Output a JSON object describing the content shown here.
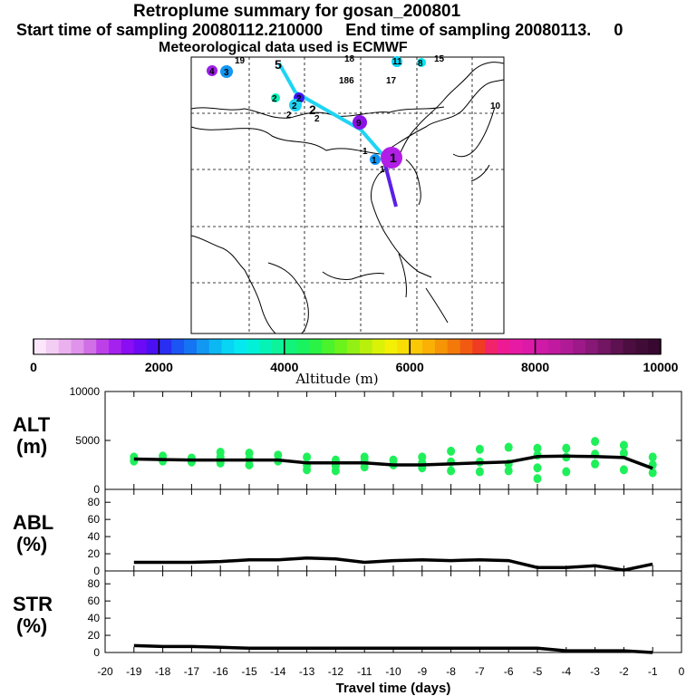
{
  "header": {
    "title": "Retroplume summary for gosan_200801",
    "start_label": "Start time of sampling 20080112.210000",
    "end_label": "End time of sampling 20080113.",
    "end_value": "0",
    "met_label": "Meteorological data used is ECMWF"
  },
  "colorbar": {
    "label": "Altitude (m)",
    "ticks": [
      "0",
      "2000",
      "4000",
      "6000",
      "8000",
      "10000"
    ],
    "colors": [
      "#fbe6fb",
      "#f3cdf3",
      "#eab1ee",
      "#df93ea",
      "#d06fe6",
      "#bd3fe8",
      "#a522ee",
      "#8a0df3",
      "#6d0af5",
      "#4a10f2",
      "#2a2ef3",
      "#1b55f3",
      "#1574f3",
      "#1297f3",
      "#0cb8f3",
      "#08d4f3",
      "#05e8f0",
      "#03f0d8",
      "#06f3b7",
      "#0cf39a",
      "#12f37b",
      "#19f35f",
      "#2af345",
      "#4af32c",
      "#6df31c",
      "#93f014",
      "#b8f00c",
      "#daf207",
      "#f3f005",
      "#f8de05",
      "#fbc805",
      "#fbb005",
      "#f69505",
      "#f37a0a",
      "#f25a12",
      "#f03c22",
      "#f2236b",
      "#ee1a93",
      "#e71aa5",
      "#dc1aa8",
      "#cf1aa7",
      "#c11aa1",
      "#b01a96",
      "#9d1888",
      "#881877",
      "#721563",
      "#5e1150",
      "#4c0e40",
      "#410b37",
      "#380830"
    ]
  },
  "map": {
    "plume_labels": [
      "19",
      "5",
      "18",
      "11",
      "8",
      "15",
      "4",
      "3",
      "2",
      "2",
      "2",
      "2",
      "2",
      "2",
      "186",
      "17",
      "10",
      "9",
      "1",
      "1",
      "1",
      "1"
    ]
  },
  "chart_data": [
    {
      "name": "ALT",
      "type": "line",
      "ylabel": [
        "ALT",
        "(m)"
      ],
      "ylim": [
        0,
        10000
      ],
      "yticks": [
        "0",
        "5000",
        "10000"
      ],
      "xlim": [
        -20,
        0
      ],
      "x": [
        -19,
        -18,
        -17,
        -16,
        -15,
        -14,
        -13,
        -12,
        -11,
        -10,
        -9,
        -8,
        -7,
        -6,
        -5,
        -4,
        -3,
        -2,
        -1
      ],
      "values": [
        3100,
        3050,
        3000,
        3000,
        3000,
        3000,
        2700,
        2700,
        2700,
        2500,
        2500,
        2600,
        2700,
        2800,
        3350,
        3400,
        3350,
        3250,
        2150
      ],
      "scatter": [
        [
          -19,
          3300
        ],
        [
          -19,
          2900
        ],
        [
          -18,
          3400
        ],
        [
          -18,
          2900
        ],
        [
          -17,
          3200
        ],
        [
          -17,
          2800
        ],
        [
          -16,
          3800
        ],
        [
          -16,
          3300
        ],
        [
          -16,
          2700
        ],
        [
          -15,
          3700
        ],
        [
          -15,
          3100
        ],
        [
          -15,
          2500
        ],
        [
          -14,
          3500
        ],
        [
          -14,
          2900
        ],
        [
          -13,
          3300
        ],
        [
          -13,
          2500
        ],
        [
          -13,
          2000
        ],
        [
          -12,
          3000
        ],
        [
          -12,
          2400
        ],
        [
          -12,
          1900
        ],
        [
          -11,
          3300
        ],
        [
          -11,
          2900
        ],
        [
          -11,
          2300
        ],
        [
          -10,
          3000
        ],
        [
          -10,
          2500
        ],
        [
          -9,
          3300
        ],
        [
          -9,
          2700
        ],
        [
          -9,
          2200
        ],
        [
          -8,
          3900
        ],
        [
          -8,
          2800
        ],
        [
          -8,
          1900
        ],
        [
          -7,
          4100
        ],
        [
          -7,
          2800
        ],
        [
          -7,
          1800
        ],
        [
          -6,
          4300
        ],
        [
          -6,
          2600
        ],
        [
          -6,
          1900
        ],
        [
          -5,
          4200
        ],
        [
          -5,
          3500
        ],
        [
          -5,
          2200
        ],
        [
          -5,
          1100
        ],
        [
          -4,
          4200
        ],
        [
          -4,
          3300
        ],
        [
          -4,
          1800
        ],
        [
          -3,
          4900
        ],
        [
          -3,
          3600
        ],
        [
          -3,
          2600
        ],
        [
          -2,
          4500
        ],
        [
          -2,
          3700
        ],
        [
          -2,
          2000
        ],
        [
          -1,
          3300
        ],
        [
          -1,
          2500
        ],
        [
          -1,
          1700
        ]
      ]
    },
    {
      "name": "ABL",
      "type": "line",
      "ylabel": [
        "ABL",
        "(%)"
      ],
      "ylim": [
        0,
        95
      ],
      "yticks": [
        "0",
        "20",
        "40",
        "60",
        "80"
      ],
      "xlim": [
        -20,
        0
      ],
      "x": [
        -19,
        -18,
        -17,
        -16,
        -15,
        -14,
        -13,
        -12,
        -11,
        -10,
        -9,
        -8,
        -7,
        -6,
        -5,
        -4,
        -3,
        -2,
        -1
      ],
      "values": [
        10,
        10,
        10,
        11,
        13,
        13,
        15,
        14,
        10,
        12,
        13,
        12,
        13,
        12,
        4,
        4,
        6,
        1,
        8
      ]
    },
    {
      "name": "STR",
      "type": "line",
      "ylabel": [
        "STR",
        "(%)"
      ],
      "ylim": [
        0,
        95
      ],
      "yticks": [
        "0",
        "20",
        "40",
        "60",
        "80"
      ],
      "xlim": [
        -20,
        0
      ],
      "x": [
        -19,
        -18,
        -17,
        -16,
        -15,
        -14,
        -13,
        -12,
        -11,
        -10,
        -9,
        -8,
        -7,
        -6,
        -5,
        -4,
        -3,
        -2,
        -1
      ],
      "values": [
        8,
        7,
        7,
        6,
        5,
        5,
        5,
        5,
        5,
        5,
        5,
        5,
        5,
        5,
        5,
        2,
        2,
        2,
        0
      ],
      "xticks": [
        "-20",
        "-19",
        "-18",
        "-17",
        "-16",
        "-15",
        "-14",
        "-13",
        "-12",
        "-11",
        "-10",
        "-9",
        "-8",
        "-7",
        "-6",
        "-5",
        "-4",
        "-3",
        "-2",
        "-1",
        "0"
      ],
      "xlabel": "Travel time (days)"
    }
  ]
}
